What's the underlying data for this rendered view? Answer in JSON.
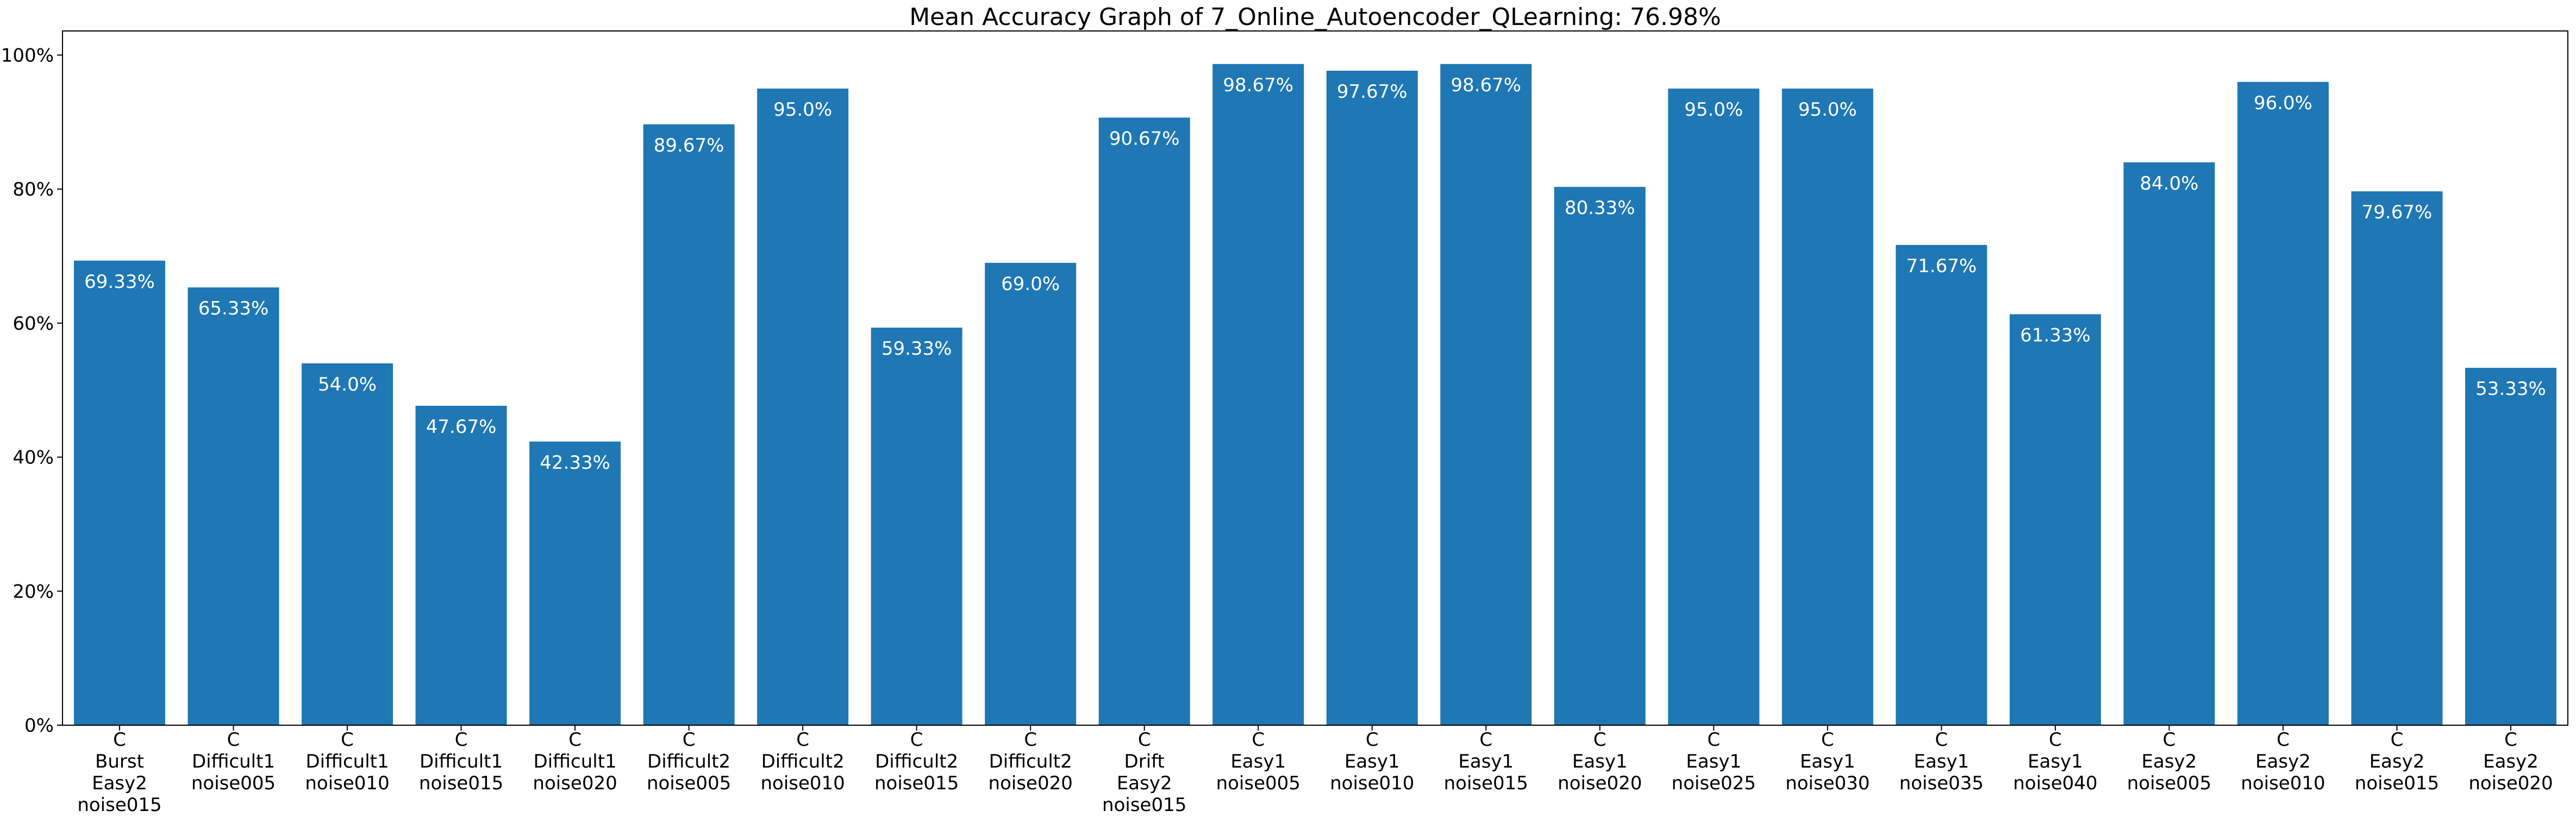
{
  "chart_data": {
    "type": "bar",
    "title": "Mean Accuracy Graph of 7_Online_Autoencoder_QLearning: 76.98%",
    "xlabel": "",
    "ylabel": "",
    "ylim": [
      0,
      103.6
    ],
    "yticks": [
      0,
      20,
      40,
      60,
      80,
      100
    ],
    "ytick_labels": [
      "0%",
      "20%",
      "40%",
      "60%",
      "80%",
      "100%"
    ],
    "grid": false,
    "bar_color": "#1f77b4",
    "label_color": "#ffffff",
    "categories": [
      [
        "C",
        "Burst",
        "Easy2",
        "noise015"
      ],
      [
        "C",
        "Difficult1",
        "noise005"
      ],
      [
        "C",
        "Difficult1",
        "noise010"
      ],
      [
        "C",
        "Difficult1",
        "noise015"
      ],
      [
        "C",
        "Difficult1",
        "noise020"
      ],
      [
        "C",
        "Difficult2",
        "noise005"
      ],
      [
        "C",
        "Difficult2",
        "noise010"
      ],
      [
        "C",
        "Difficult2",
        "noise015"
      ],
      [
        "C",
        "Difficult2",
        "noise020"
      ],
      [
        "C",
        "Drift",
        "Easy2",
        "noise015"
      ],
      [
        "C",
        "Easy1",
        "noise005"
      ],
      [
        "C",
        "Easy1",
        "noise010"
      ],
      [
        "C",
        "Easy1",
        "noise015"
      ],
      [
        "C",
        "Easy1",
        "noise020"
      ],
      [
        "C",
        "Easy1",
        "noise025"
      ],
      [
        "C",
        "Easy1",
        "noise030"
      ],
      [
        "C",
        "Easy1",
        "noise035"
      ],
      [
        "C",
        "Easy1",
        "noise040"
      ],
      [
        "C",
        "Easy2",
        "noise005"
      ],
      [
        "C",
        "Easy2",
        "noise010"
      ],
      [
        "C",
        "Easy2",
        "noise015"
      ],
      [
        "C",
        "Easy2",
        "noise020"
      ]
    ],
    "values": [
      69.33,
      65.33,
      54.0,
      47.67,
      42.33,
      89.67,
      95.0,
      59.33,
      69.0,
      90.67,
      98.67,
      97.67,
      98.67,
      80.33,
      95.0,
      95.0,
      71.67,
      61.33,
      84.0,
      96.0,
      79.67,
      53.33
    ],
    "value_labels": [
      "69.33%",
      "65.33%",
      "54.0%",
      "47.67%",
      "42.33%",
      "89.67%",
      "95.0%",
      "59.33%",
      "69.0%",
      "90.67%",
      "98.67%",
      "97.67%",
      "98.67%",
      "80.33%",
      "95.0%",
      "95.0%",
      "71.67%",
      "61.33%",
      "84.0%",
      "96.0%",
      "79.67%",
      "53.33%"
    ]
  }
}
